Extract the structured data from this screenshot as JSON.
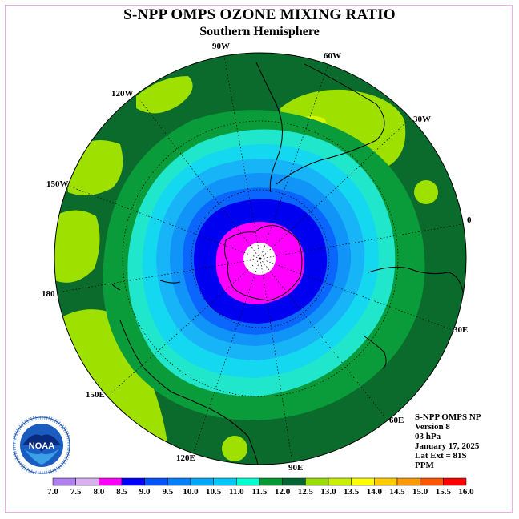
{
  "header": {
    "title": "S-NPP OMPS OZONE MIXING RATIO",
    "subtitle": "Southern Hemisphere"
  },
  "info": {
    "lines": [
      "S-NPP OMPS NP",
      "Version 8",
      "03 hPa",
      "January 17, 2025",
      "Lat Ext = 81S",
      "PPM"
    ]
  },
  "longitude_labels": [
    "90W",
    "60W",
    "120W",
    "30W",
    "150W",
    "0",
    "180",
    "30E",
    "150E",
    "60E",
    "120E",
    "90E"
  ],
  "logo": {
    "text": "NOAA",
    "icon": "noaa-logo-icon"
  },
  "colorbar": {
    "ticks": [
      "7.0",
      "7.5",
      "8.0",
      "8.5",
      "9.0",
      "9.5",
      "10.0",
      "10.5",
      "11.0",
      "11.5",
      "12.0",
      "12.5",
      "13.0",
      "13.5",
      "14.0",
      "14.5",
      "15.0",
      "15.5",
      "16.0"
    ],
    "colors": [
      "#b080f0",
      "#d8b0f0",
      "#ff00ff",
      "#0000ff",
      "#0055ff",
      "#0080ff",
      "#00aaff",
      "#00c8ff",
      "#00ffd0",
      "#009933",
      "#006633",
      "#99dd00",
      "#c8f000",
      "#ffff00",
      "#ffcc00",
      "#ff9900",
      "#ff5500",
      "#ff0000",
      "#996633"
    ]
  },
  "map_colors": {
    "outer": "#0b6b2c",
    "level_11_5": "#0a9b3a",
    "level_11_0": "#20e6cc",
    "level_10_5": "#14d8f0",
    "level_10_0": "#18b4f8",
    "level_9_5": "#1094f8",
    "level_9_0": "#0a66ff",
    "level_8_5": "#0000f0",
    "level_8_0": "#ff00ff",
    "high_12_5": "#9ee000",
    "high_13_0": "#d8f800"
  }
}
